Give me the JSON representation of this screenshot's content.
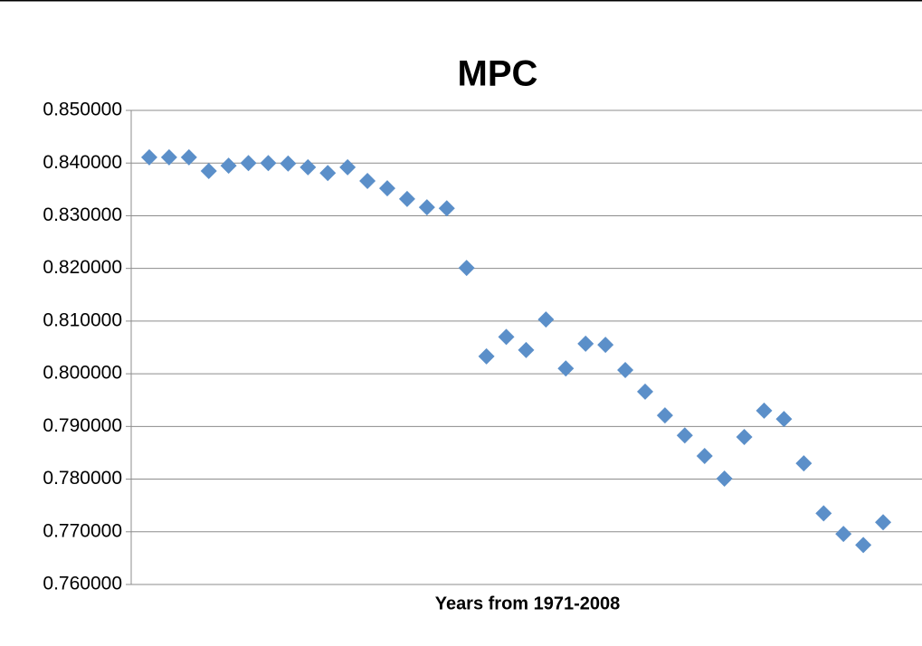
{
  "chart_data": {
    "type": "scatter",
    "title": "MPC",
    "x_label": "Years from 1971-2008",
    "categories": [
      null,
      null,
      null,
      null,
      null,
      null,
      null,
      null,
      null,
      null,
      null,
      null,
      null,
      null,
      null,
      null,
      null,
      null,
      null,
      null,
      null,
      null,
      null,
      null,
      null,
      null,
      null,
      null,
      null,
      null,
      null,
      null,
      null,
      null,
      null,
      null,
      null,
      null
    ],
    "values": [
      0.8411,
      0.8411,
      0.8411,
      0.8385,
      0.8395,
      0.84,
      0.84,
      0.8399,
      0.8392,
      0.8381,
      0.8392,
      0.8366,
      0.8352,
      0.8332,
      0.8316,
      0.8314,
      0.8201,
      0.8033,
      0.807,
      0.8045,
      0.8103,
      0.801,
      0.8057,
      0.8055,
      0.8007,
      0.7966,
      0.7921,
      0.7883,
      0.7844,
      0.7801,
      0.788,
      0.793,
      0.7914,
      0.783,
      0.7735,
      0.7696,
      0.7675,
      0.7718
    ],
    "color": "#5b8fc9",
    "ylim": [
      0.76,
      0.85
    ],
    "yticks": [
      {
        "value": 0.76,
        "label": "0.760000"
      },
      {
        "value": 0.77,
        "label": "0.770000"
      },
      {
        "value": 0.78,
        "label": "0.780000"
      },
      {
        "value": 0.79,
        "label": "0.790000"
      },
      {
        "value": 0.8,
        "label": "0.800000"
      },
      {
        "value": 0.81,
        "label": "0.810000"
      },
      {
        "value": 0.82,
        "label": "0.820000"
      },
      {
        "value": 0.83,
        "label": "0.830000"
      },
      {
        "value": 0.84,
        "label": "0.840000"
      },
      {
        "value": 0.85,
        "label": "0.850000"
      }
    ],
    "grid": true
  }
}
